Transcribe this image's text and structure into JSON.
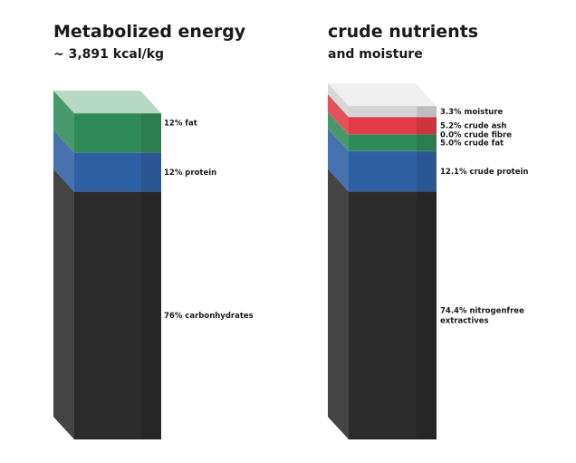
{
  "chart_data": [
    {
      "type": "stacked-bar-3d",
      "title": "Metabolized energy",
      "subtitle": "~ 3,891 kcal/kg",
      "segments": [
        {
          "label_lines": [
            "76% carbonhydrates"
          ],
          "value": 76,
          "color": "#2b2b2b"
        },
        {
          "label_lines": [
            "12% protein"
          ],
          "value": 12,
          "color": "#2f5fa3"
        },
        {
          "label_lines": [
            "12% fat"
          ],
          "value": 12,
          "color": "#2e8b57"
        }
      ]
    },
    {
      "type": "stacked-bar-3d",
      "title": "crude nutrients",
      "subtitle": "and moisture",
      "segments": [
        {
          "label_lines": [
            "74.4% nitrogenfree",
            "extractives"
          ],
          "value": 74.4,
          "color": "#2b2b2b"
        },
        {
          "label_lines": [
            "12.1% crude protein"
          ],
          "value": 12.1,
          "color": "#2f5fa3"
        },
        {
          "label_lines": [
            "5.0% crude fat"
          ],
          "value": 5.0,
          "color": "#2e8b57"
        },
        {
          "label_lines": [
            "0.0% crude fibre"
          ],
          "value": 0.0,
          "color": "#c9b99a"
        },
        {
          "label_lines": [
            "5.2% crude ash"
          ],
          "value": 5.2,
          "color": "#e23a46"
        },
        {
          "label_lines": [
            "3.3% moisture"
          ],
          "value": 3.3,
          "color": "#d3d3d3"
        }
      ]
    }
  ]
}
